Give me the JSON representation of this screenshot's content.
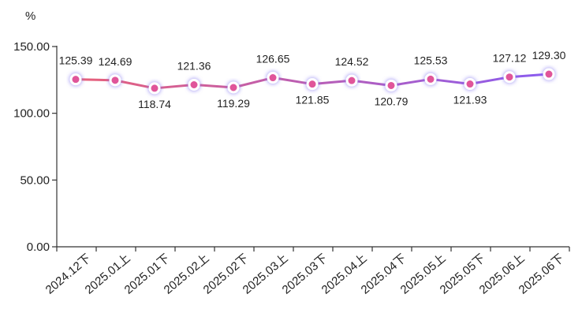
{
  "chart_data": {
    "type": "line",
    "unit": "%",
    "categories": [
      "2024.12下",
      "2025.01上",
      "2025.01下",
      "2025.02上",
      "2025.02下",
      "2025.03上",
      "2025.03下",
      "2025.04上",
      "2025.04下",
      "2025.05上",
      "2025.05下",
      "2025.06上",
      "2025.06下"
    ],
    "series": [
      {
        "values": [
          125.39,
          124.69,
          118.74,
          121.36,
          119.29,
          126.65,
          121.85,
          124.52,
          120.79,
          125.53,
          121.93,
          127.12,
          129.3
        ],
        "labels": [
          "125.39",
          "124.69",
          "118.74",
          "121.36",
          "119.29",
          "126.65",
          "121.85",
          "124.52",
          "120.79",
          "125.53",
          "121.93",
          "127.12",
          "129.30"
        ]
      }
    ],
    "ylim": [
      0,
      150
    ],
    "yticks": [
      "0.00",
      "50.00",
      "100.00",
      "150.00"
    ],
    "grid": false,
    "colors": {
      "line_start": "#e8607a",
      "line_end": "#8a5cf0",
      "marker_fill": "#e0559a",
      "marker_stroke": "#ffffff",
      "glow": "#7b6cf0",
      "axis": "#333333"
    }
  }
}
